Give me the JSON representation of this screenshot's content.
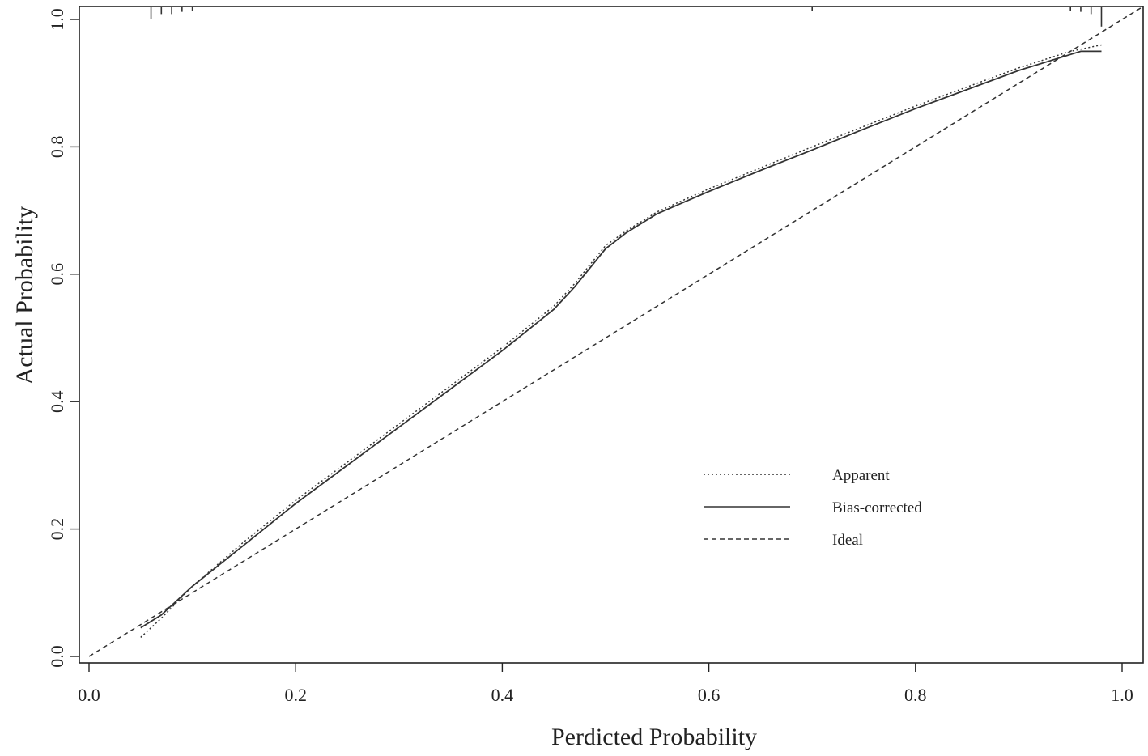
{
  "chart_data": {
    "type": "line",
    "title": "",
    "xlabel": "Perdicted Probability",
    "ylabel": "Actual Probability",
    "xlim": [
      0.0,
      1.0
    ],
    "ylim": [
      0.0,
      1.0
    ],
    "x_ticks": [
      "0.0",
      "0.2",
      "0.4",
      "0.6",
      "0.8",
      "1.0"
    ],
    "y_ticks": [
      "0.0",
      "0.2",
      "0.4",
      "0.6",
      "0.8",
      "1.0"
    ],
    "grid": false,
    "legend_position": "bottom-right",
    "series": [
      {
        "name": "Apparent",
        "style": "dotted",
        "x": [
          0.05,
          0.07,
          0.1,
          0.15,
          0.2,
          0.25,
          0.3,
          0.35,
          0.4,
          0.45,
          0.47,
          0.5,
          0.52,
          0.55,
          0.6,
          0.65,
          0.7,
          0.75,
          0.8,
          0.85,
          0.9,
          0.95,
          0.98
        ],
        "y": [
          0.03,
          0.06,
          0.11,
          0.18,
          0.245,
          0.305,
          0.365,
          0.425,
          0.485,
          0.55,
          0.585,
          0.645,
          0.668,
          0.698,
          0.734,
          0.767,
          0.8,
          0.832,
          0.864,
          0.894,
          0.924,
          0.95,
          0.96
        ]
      },
      {
        "name": "Bias-corrected",
        "style": "solid",
        "x": [
          0.05,
          0.07,
          0.1,
          0.15,
          0.2,
          0.25,
          0.3,
          0.35,
          0.4,
          0.45,
          0.47,
          0.5,
          0.52,
          0.55,
          0.6,
          0.65,
          0.7,
          0.75,
          0.8,
          0.85,
          0.9,
          0.95,
          0.96,
          0.98
        ],
        "y": [
          0.045,
          0.065,
          0.11,
          0.175,
          0.24,
          0.3,
          0.36,
          0.42,
          0.48,
          0.545,
          0.58,
          0.64,
          0.665,
          0.695,
          0.73,
          0.763,
          0.795,
          0.828,
          0.86,
          0.89,
          0.92,
          0.945,
          0.95,
          0.95
        ]
      },
      {
        "name": "Ideal",
        "style": "dashed",
        "x": [
          0.0,
          1.02
        ],
        "y": [
          0.0,
          1.02
        ]
      }
    ],
    "rug_top": [
      0.06,
      0.07,
      0.08,
      0.09,
      0.1,
      0.7,
      0.95,
      0.96,
      0.97,
      0.98
    ],
    "rug_top_heights": [
      1.0,
      0.6,
      0.6,
      0.4,
      0.3,
      0.3,
      0.3,
      0.4,
      0.6,
      1.7
    ]
  },
  "colors": {
    "line": "#333333",
    "axis": "#222222",
    "background": "#ffffff"
  }
}
